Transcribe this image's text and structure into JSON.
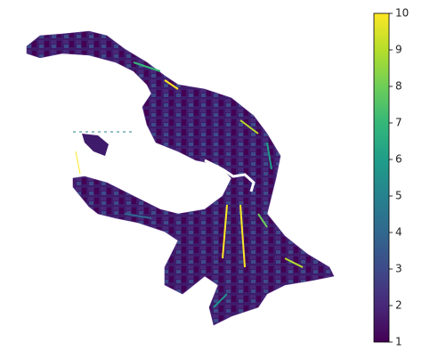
{
  "chart_data": {
    "type": "choropleth",
    "colorbar": {
      "colormap": "viridis",
      "lim": [
        1,
        10
      ],
      "ticks": [
        1,
        2,
        3,
        4,
        5,
        6,
        7,
        8,
        9,
        10
      ]
    }
  }
}
